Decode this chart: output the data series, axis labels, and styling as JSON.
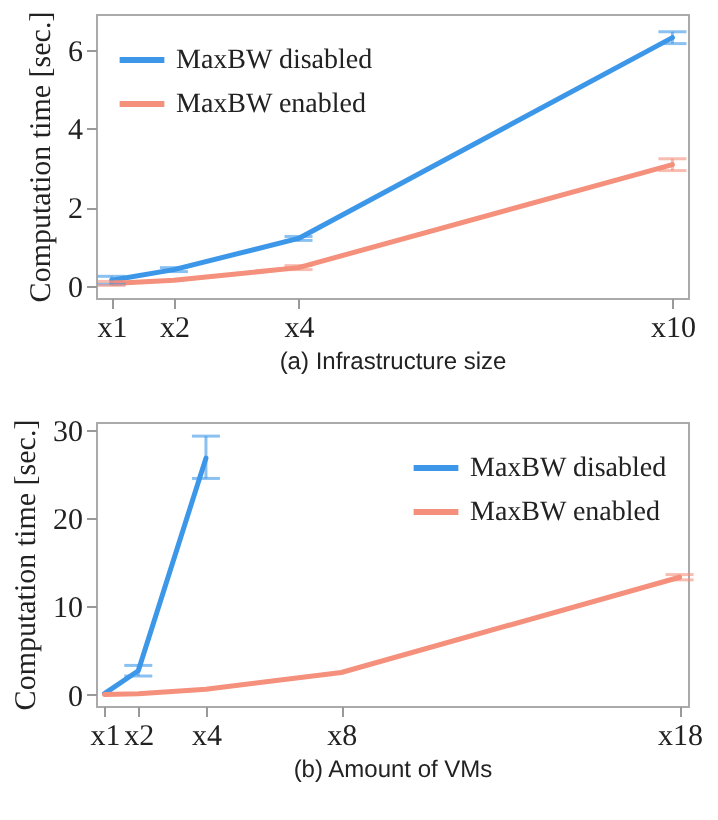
{
  "chart_data": [
    {
      "type": "line",
      "xlabel": "(a) Infrastructure size",
      "ylabel": "Computation time [sec.]",
      "categories": [
        "x1",
        "x2",
        null,
        "x4",
        null,
        null,
        null,
        null,
        null,
        "x10"
      ],
      "ylim": [
        -0.3,
        6.9
      ],
      "yticks": [
        0,
        2,
        4,
        6
      ],
      "grid": false,
      "legend": "top left",
      "marker": "none",
      "line_style": "solid",
      "series": [
        {
          "name": "MaxBW disabled",
          "color": "#3d97e8",
          "values": [
            0.15,
            0.42,
            null,
            1.21,
            null,
            null,
            null,
            null,
            null,
            6.3
          ],
          "errors": [
            0.1,
            0.05,
            null,
            0.05,
            null,
            null,
            null,
            null,
            null,
            0.15
          ]
        },
        {
          "name": "MaxBW enabled",
          "color": "#f4907c",
          "values": [
            0.07,
            0.15,
            null,
            0.47,
            null,
            null,
            null,
            null,
            null,
            3.08
          ],
          "errors": [
            0.05,
            null,
            null,
            0.05,
            null,
            null,
            null,
            null,
            null,
            0.15
          ]
        }
      ]
    },
    {
      "type": "line",
      "xlabel": "(b) Amount of VMs",
      "ylabel": "Computation time [sec.]",
      "categories": [
        "x1",
        "x2",
        null,
        "x4",
        null,
        null,
        null,
        "x8",
        null,
        null,
        null,
        null,
        null,
        null,
        null,
        null,
        null,
        "x18"
      ],
      "ylim": [
        -1.3,
        30.9
      ],
      "yticks": [
        0,
        10,
        20,
        30
      ],
      "grid": false,
      "legend": "top right",
      "marker": "none",
      "line_style": "solid",
      "series": [
        {
          "name": "MaxBW disabled",
          "color": "#3d97e8",
          "values": [
            0.1,
            2.7,
            null,
            26.8,
            null,
            null,
            null,
            null,
            null,
            null,
            null,
            null,
            null,
            null,
            null,
            null,
            null,
            null
          ],
          "errors": [
            null,
            0.6,
            null,
            [
              24.5,
              29.3
            ],
            null,
            null,
            null,
            null,
            null,
            null,
            null,
            null,
            null,
            null,
            null,
            null,
            null,
            null
          ]
        },
        {
          "name": "MaxBW enabled",
          "color": "#f4907c",
          "values": [
            0,
            0.1,
            null,
            0.6,
            null,
            null,
            null,
            2.5,
            null,
            null,
            null,
            null,
            null,
            null,
            null,
            null,
            null,
            13.3
          ],
          "errors": [
            null,
            null,
            null,
            null,
            null,
            null,
            null,
            null,
            null,
            null,
            null,
            null,
            null,
            null,
            null,
            null,
            null,
            0.3
          ]
        }
      ]
    }
  ]
}
